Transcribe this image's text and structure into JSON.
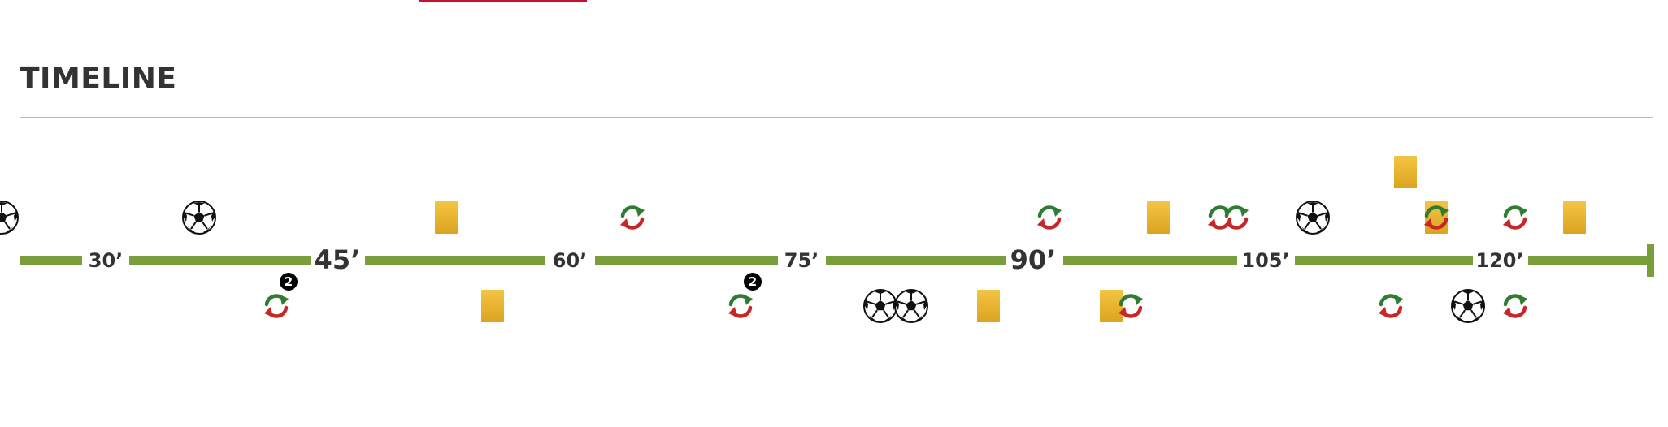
{
  "section": {
    "title": "TIMELINE"
  },
  "colors": {
    "bar": "#7b9e3c",
    "accent": "#c8102e",
    "sub_in": "#2e7d32",
    "sub_out": "#c62828",
    "card": "#e9b52f",
    "text": "#333333"
  },
  "timeline": {
    "minute_marks": [
      "30’",
      "45’",
      "60’",
      "75’",
      "90’",
      "105’",
      "120’"
    ],
    "events": [
      {
        "type": "goal",
        "icon": "soccer-ball-icon",
        "row": "top"
      },
      {
        "type": "goal",
        "icon": "soccer-ball-icon",
        "row": "top"
      },
      {
        "type": "substitution",
        "icon": "substitution-icon",
        "row": "bottom",
        "badge": "2"
      },
      {
        "type": "yellow-card",
        "icon": "yellow-card-icon",
        "row": "top"
      },
      {
        "type": "yellow-card",
        "icon": "yellow-card-icon",
        "row": "bottom"
      },
      {
        "type": "substitution",
        "icon": "substitution-icon",
        "row": "top"
      },
      {
        "type": "substitution",
        "icon": "substitution-icon",
        "row": "bottom",
        "badge": "2"
      },
      {
        "type": "goal",
        "icon": "soccer-ball-icon",
        "row": "bottom"
      },
      {
        "type": "goal",
        "icon": "soccer-ball-icon",
        "row": "bottom"
      },
      {
        "type": "yellow-card",
        "icon": "yellow-card-icon",
        "row": "bottom"
      },
      {
        "type": "substitution",
        "icon": "substitution-icon",
        "row": "top"
      },
      {
        "type": "yellow-card",
        "icon": "yellow-card-icon",
        "row": "top"
      },
      {
        "type": "yellow-card",
        "icon": "yellow-card-icon",
        "row": "bottom"
      },
      {
        "type": "substitution",
        "icon": "substitution-icon",
        "row": "bottom"
      },
      {
        "type": "substitution",
        "icon": "substitution-icon",
        "row": "top"
      },
      {
        "type": "substitution",
        "icon": "substitution-icon",
        "row": "top"
      },
      {
        "type": "goal",
        "icon": "soccer-ball-icon",
        "row": "top"
      },
      {
        "type": "substitution",
        "icon": "substitution-icon",
        "row": "bottom"
      },
      {
        "type": "yellow-card",
        "icon": "yellow-card-icon",
        "row": "top"
      },
      {
        "type": "yellow-card",
        "icon": "yellow-card-icon",
        "row": "top"
      },
      {
        "type": "substitution",
        "icon": "substitution-icon",
        "row": "top"
      },
      {
        "type": "goal",
        "icon": "soccer-ball-icon",
        "row": "bottom"
      },
      {
        "type": "substitution",
        "icon": "substitution-icon",
        "row": "top"
      },
      {
        "type": "substitution",
        "icon": "substitution-icon",
        "row": "bottom"
      },
      {
        "type": "yellow-card",
        "icon": "yellow-card-icon",
        "row": "top"
      }
    ]
  }
}
